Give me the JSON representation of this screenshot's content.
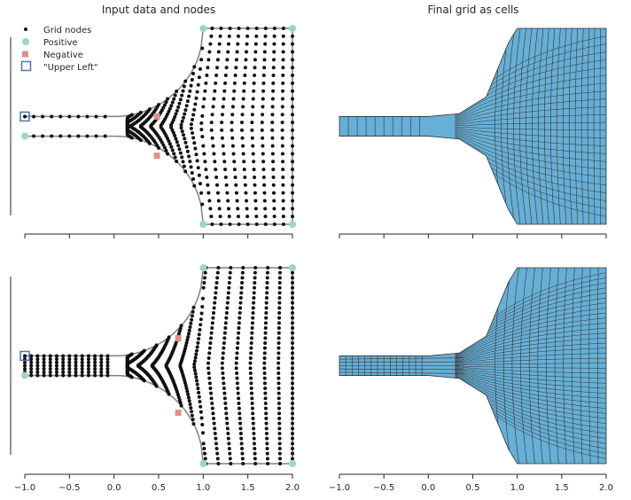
{
  "chart_data": [
    {
      "type": "scatter",
      "panel": "top-left",
      "title": "Input data and nodes",
      "xlim": [
        -1.0,
        2.0
      ],
      "ylim": [
        -1.05,
        1.05
      ],
      "x_tick_labels_visible": false,
      "legend": {
        "position": "top-left",
        "entries": [
          "Grid nodes",
          "Positive",
          "Negative",
          "\"Upper Left\""
        ]
      },
      "boundary": {
        "top_channel_y": 0.1,
        "bottom_channel_y": -0.1,
        "channel_x_end": 0.0,
        "arc_top_y": 1.0,
        "arc_bottom_y": -1.0,
        "right_x": 2.0
      },
      "series": [
        {
          "name": "Positive",
          "color": "#9fd8b6",
          "points": [
            [
              -1.0,
              -0.1
            ],
            [
              1.0,
              1.0
            ],
            [
              2.0,
              1.0
            ],
            [
              1.0,
              -1.0
            ],
            [
              2.0,
              -1.0
            ]
          ]
        },
        {
          "name": "Negative",
          "color": "#de8f8f",
          "points": [
            [
              0.48,
              0.1
            ],
            [
              0.48,
              -0.3
            ]
          ]
        },
        {
          "name": "\"Upper Left\"",
          "color": "#4c72b0",
          "points": [
            [
              -1.0,
              0.1
            ]
          ]
        }
      ],
      "grid_nodes": {
        "channel_columns": 10,
        "channel_rows": 2,
        "fan_columns": 19,
        "fan_rows": 26,
        "clustering": "uniform"
      }
    },
    {
      "type": "heatmap",
      "panel": "top-right",
      "title": "Final grid as cells",
      "xlim": [
        -1.0,
        2.0
      ],
      "ylim": [
        -1.05,
        1.05
      ],
      "x_tick_labels_visible": false,
      "cell_color": "#67afd6",
      "grid_lines": {
        "channel_columns": 10,
        "channel_rows": 1,
        "fan_columns": 19,
        "fan_rows": 25
      }
    },
    {
      "type": "scatter",
      "panel": "bottom-left",
      "title": "",
      "xlim": [
        -1.0,
        2.0
      ],
      "ylim": [
        -1.05,
        1.05
      ],
      "x_tick_labels": [
        "−1.0",
        "−0.5",
        "0.0",
        "0.5",
        "1.0",
        "1.5",
        "2.0"
      ],
      "boundary": {
        "top_channel_y": 0.1,
        "bottom_channel_y": -0.1,
        "channel_x_end": 0.0,
        "arc_top_y": 1.0,
        "arc_bottom_y": -1.0,
        "right_x": 2.0
      },
      "series": [
        {
          "name": "Positive",
          "color": "#9fd8b6",
          "points": [
            [
              -1.0,
              -0.1
            ],
            [
              1.0,
              1.0
            ],
            [
              2.0,
              1.0
            ],
            [
              1.0,
              -1.0
            ],
            [
              2.0,
              -1.0
            ]
          ]
        },
        {
          "name": "Negative",
          "color": "#de8f8f",
          "points": [
            [
              0.72,
              0.28
            ],
            [
              0.72,
              -0.48
            ]
          ]
        },
        {
          "name": "\"Upper Left\"",
          "color": "#4c72b0",
          "points": [
            [
              -1.0,
              0.1
            ]
          ]
        }
      ],
      "grid_nodes": {
        "channel_columns": 14,
        "channel_rows": 7,
        "fan_columns": 14,
        "fan_rows": 40,
        "clustering": "graded"
      }
    },
    {
      "type": "heatmap",
      "panel": "bottom-right",
      "title": "",
      "xlim": [
        -1.0,
        2.0
      ],
      "ylim": [
        -1.05,
        1.05
      ],
      "x_tick_labels": [
        "−1.0",
        "−0.5",
        "0.0",
        "0.5",
        "1.0",
        "1.5",
        "2.0"
      ],
      "cell_color": "#67afd6",
      "grid_lines": {
        "channel_columns": 14,
        "channel_rows": 6,
        "fan_columns": 14,
        "fan_rows": 39
      }
    }
  ]
}
